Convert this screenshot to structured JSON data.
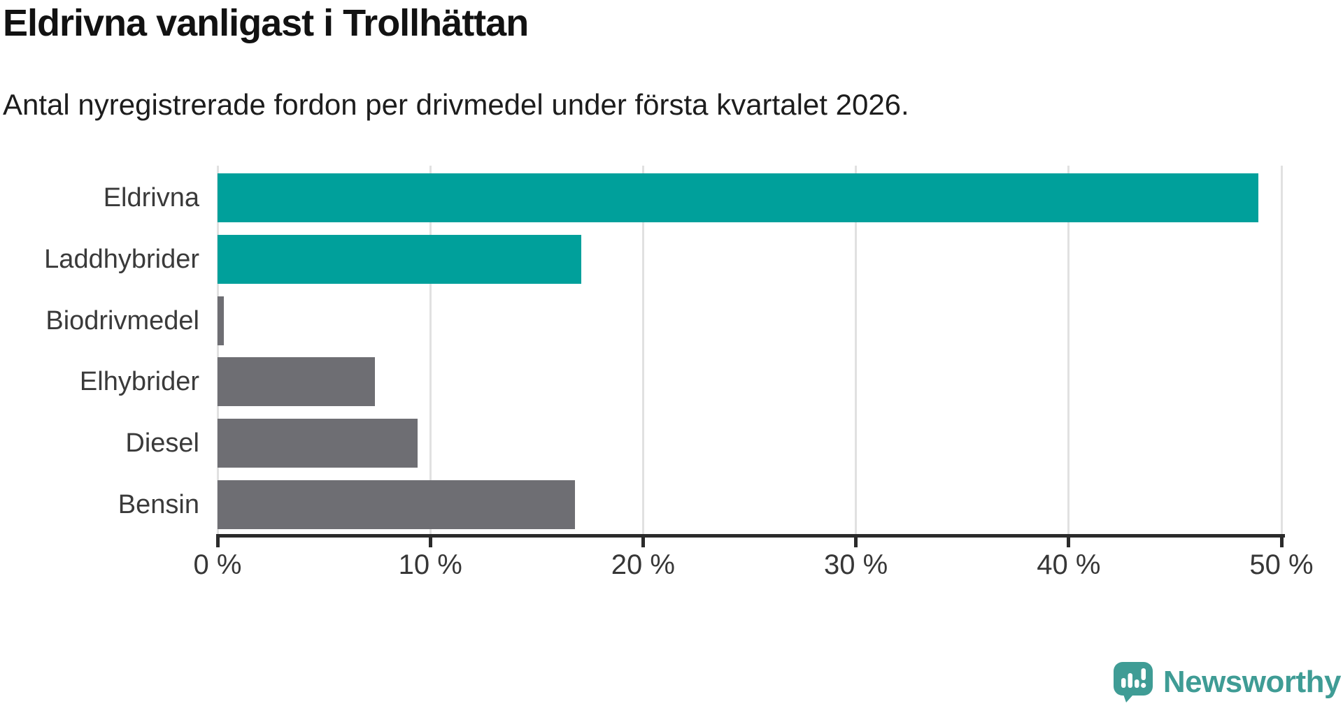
{
  "title": "Eldrivna vanligast i Trollhättan",
  "subtitle": "Antal nyregistrerade fordon per drivmedel under första kvartalet 2026.",
  "chart_data": {
    "type": "bar",
    "orientation": "horizontal",
    "title": "Eldrivna vanligast i Trollhättan",
    "subtitle": "Antal nyregistrerade fordon per drivmedel under första kvartalet 2026.",
    "categories": [
      "Eldrivna",
      "Laddhybrider",
      "Biodrivmedel",
      "Elhybrider",
      "Diesel",
      "Bensin"
    ],
    "values": [
      48.9,
      17.1,
      0.3,
      7.4,
      9.4,
      16.8
    ],
    "unit": "%",
    "xlim": [
      0,
      50
    ],
    "x_tick_values": [
      0,
      10,
      20,
      30,
      40,
      50
    ],
    "x_tick_labels": [
      "0 %",
      "10 %",
      "20 %",
      "30 %",
      "40 %",
      "50 %"
    ],
    "grid": true,
    "bar_colors": [
      "#00a09b",
      "#00a09b",
      "#6e6e73",
      "#6e6e73",
      "#6e6e73",
      "#6e6e73"
    ],
    "highlight_color": "#00a09b",
    "default_color": "#6e6e73",
    "gridline_color": "#e1e1e1",
    "axis_color": "#2b2b2b"
  },
  "branding": {
    "logo_text": "Newsworthy",
    "logo_color": "#3f9c95"
  }
}
